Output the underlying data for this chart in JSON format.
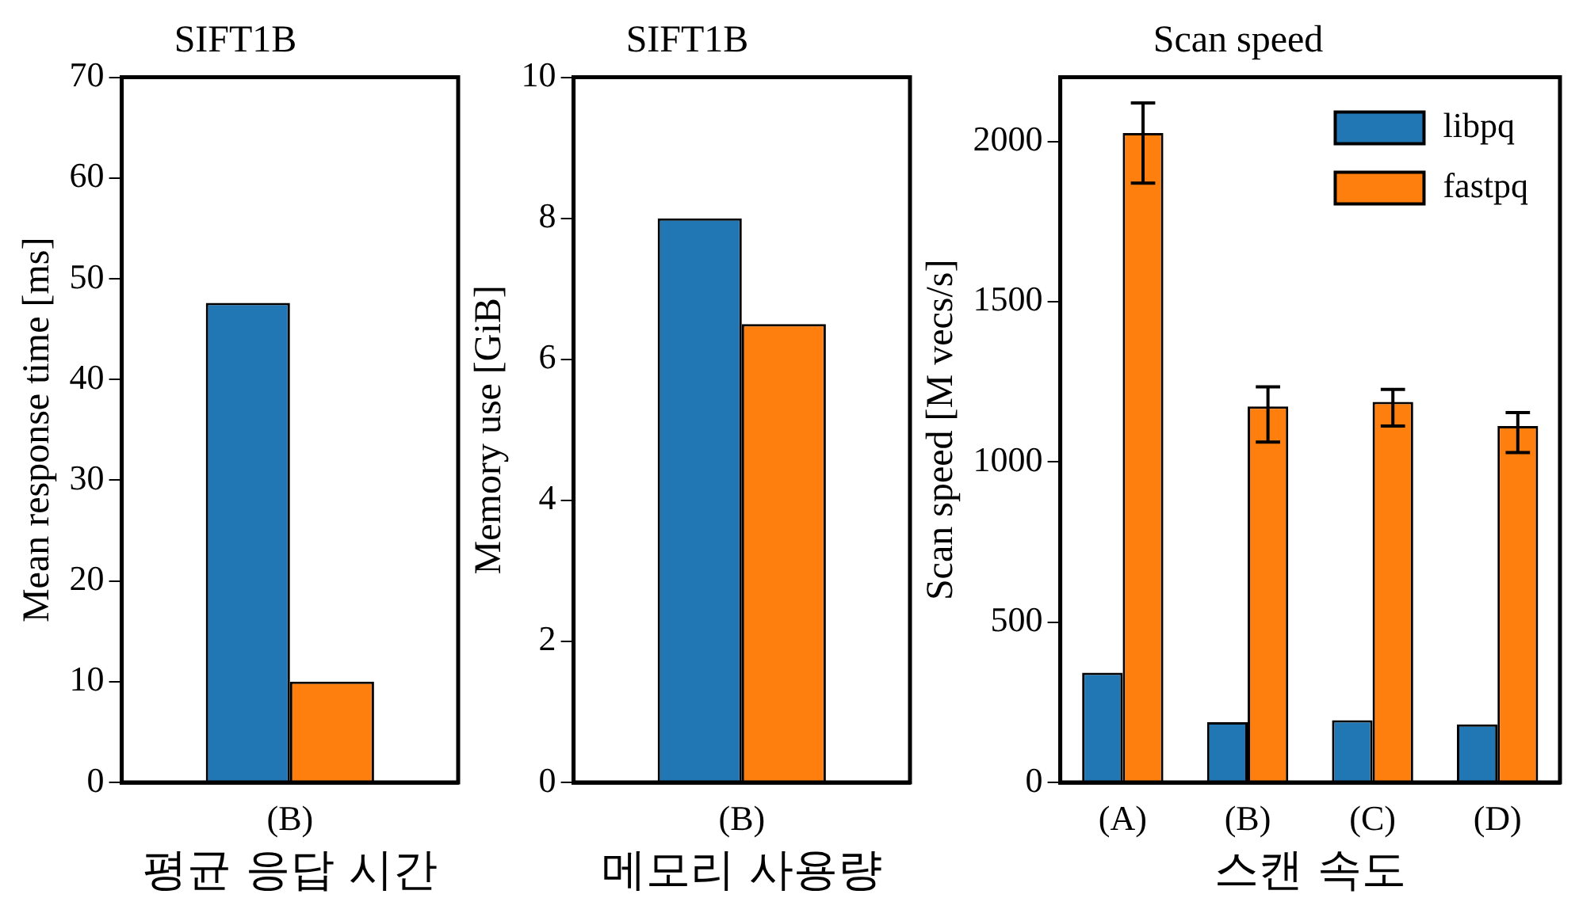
{
  "chart_data": [
    {
      "type": "bar",
      "title": "SIFT1B",
      "ylabel": "Mean response time [ms]",
      "xlabel": "평균 응답 시간",
      "categories": [
        "(B)"
      ],
      "ylim": [
        0,
        70
      ],
      "yticks": [
        0,
        10,
        20,
        30,
        40,
        50,
        60,
        70
      ],
      "grid": false,
      "legend": false,
      "series": [
        {
          "color": "#2077b4",
          "values": [
            47.6
          ]
        },
        {
          "color": "#ff7f0e",
          "values": [
            10.0
          ]
        }
      ]
    },
    {
      "type": "bar",
      "title": "SIFT1B",
      "ylabel": "Memory use [GiB]",
      "xlabel": "메모리 사용량",
      "categories": [
        "(B)"
      ],
      "ylim": [
        0,
        10
      ],
      "yticks": [
        0,
        2,
        4,
        6,
        8,
        10
      ],
      "grid": false,
      "legend": false,
      "series": [
        {
          "color": "#2077b4",
          "values": [
            8.0
          ]
        },
        {
          "color": "#ff7f0e",
          "values": [
            6.5
          ]
        }
      ]
    },
    {
      "type": "bar",
      "title": "Scan speed",
      "ylabel": "Scan speed [M vecs/s]",
      "xlabel": "스캔 속도",
      "categories": [
        "(A)",
        "(B)",
        "(C)",
        "(D)"
      ],
      "ylim": [
        0,
        2200
      ],
      "yticks": [
        0,
        500,
        1000,
        1500,
        2000
      ],
      "grid": false,
      "legend": "top right",
      "series": [
        {
          "name": "libpq",
          "color": "#2077b4",
          "values": [
            342,
            188,
            194,
            181
          ]
        },
        {
          "name": "fastpq",
          "color": "#ff7f0e",
          "values": [
            2026,
            1173,
            1187,
            1112
          ],
          "errors": [
            [
              1870,
              2120
            ],
            [
              1062,
              1234
            ],
            [
              1112,
              1226
            ],
            [
              1029,
              1154
            ]
          ]
        }
      ]
    }
  ]
}
